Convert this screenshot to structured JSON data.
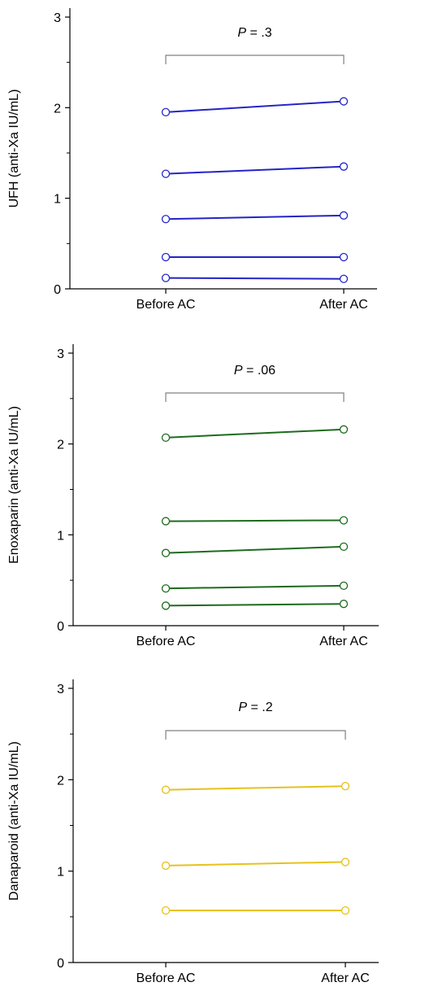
{
  "chart_data": [
    {
      "type": "line",
      "ylabel": "UFH (anti-Xa IU/mL)",
      "categories": [
        "Before AC",
        "After AC"
      ],
      "yticks": [
        "0",
        "1",
        "2",
        "3"
      ],
      "ylim": [
        0,
        3
      ],
      "color": "#2424c8",
      "p_label": "P",
      "p_value": "= .3",
      "series": [
        {
          "values": [
            1.95,
            2.07
          ]
        },
        {
          "values": [
            1.27,
            1.35
          ]
        },
        {
          "values": [
            0.77,
            0.81
          ]
        },
        {
          "values": [
            0.35,
            0.35
          ]
        },
        {
          "values": [
            0.12,
            0.11
          ]
        }
      ]
    },
    {
      "type": "line",
      "ylabel": "Enoxaparin (anti-Xa IU/mL)",
      "categories": [
        "Before AC",
        "After AC"
      ],
      "yticks": [
        "0",
        "1",
        "2",
        "3"
      ],
      "ylim": [
        0,
        3
      ],
      "color": "#1e6b1e",
      "p_label": "P",
      "p_value": "= .06",
      "series": [
        {
          "values": [
            2.07,
            2.16
          ]
        },
        {
          "values": [
            1.15,
            1.16
          ]
        },
        {
          "values": [
            0.8,
            0.87
          ]
        },
        {
          "values": [
            0.41,
            0.44
          ]
        },
        {
          "values": [
            0.22,
            0.24
          ]
        }
      ]
    },
    {
      "type": "line",
      "ylabel": "Danaparoid (anti-Xa IU/mL)",
      "categories": [
        "Before AC",
        "After AC"
      ],
      "yticks": [
        "0",
        "1",
        "2",
        "3"
      ],
      "ylim": [
        0,
        3
      ],
      "color": "#e6c21c",
      "p_label": "P",
      "p_value": "= .2",
      "series": [
        {
          "values": [
            1.89,
            1.93
          ]
        },
        {
          "values": [
            1.06,
            1.1
          ]
        },
        {
          "values": [
            0.57,
            0.57
          ]
        }
      ]
    }
  ]
}
